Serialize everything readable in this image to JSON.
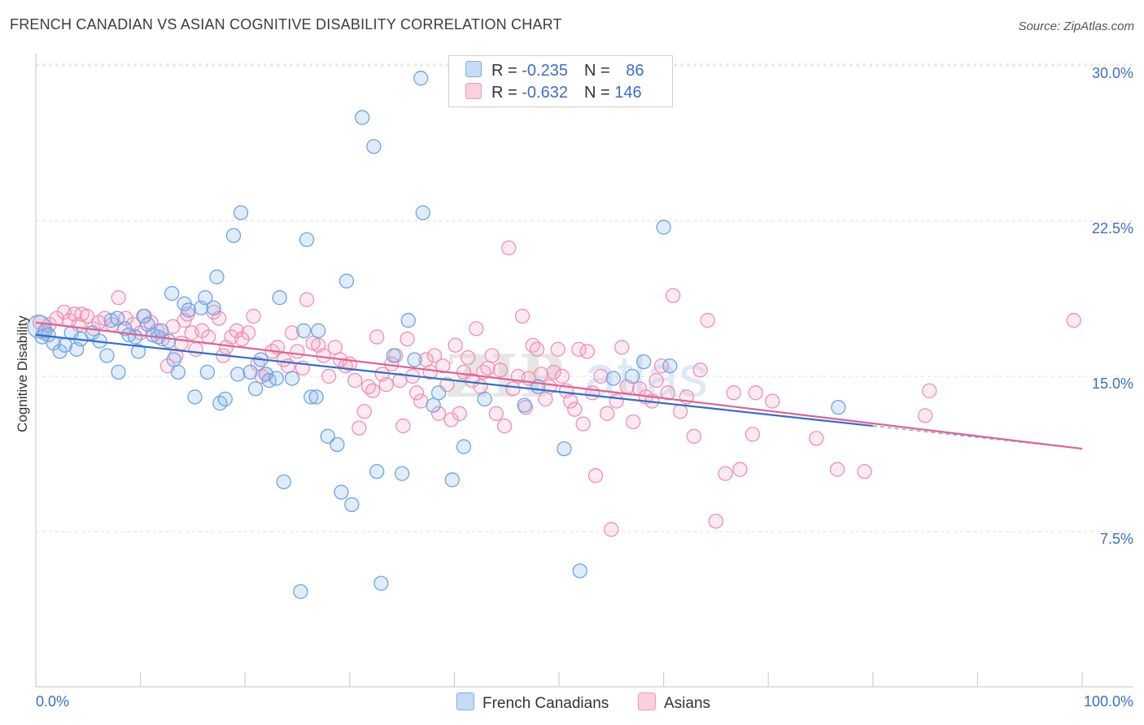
{
  "header": {
    "title": "FRENCH CANADIAN VS ASIAN COGNITIVE DISABILITY CORRELATION CHART",
    "source": "Source: ZipAtlas.com"
  },
  "legend": {
    "rows": [
      {
        "r_label": "R = ",
        "r_value": "-0.235",
        "n_label": "N = ",
        "n_value": "86",
        "color": "#7aaeea"
      },
      {
        "r_label": "R = ",
        "r_value": "-0.632",
        "n_label": "N = ",
        "n_value": "146",
        "color": "#f09ab6"
      }
    ]
  },
  "bottom_legend": {
    "items": [
      {
        "label": "French Canadians",
        "color": "#7aaeea"
      },
      {
        "label": "Asians",
        "color": "#f09ab6"
      }
    ]
  },
  "colors": {
    "blue": "#6fa3e6",
    "blue_line": "#2d6fce",
    "pink": "#f08fb0",
    "pink_line": "#e0628f",
    "grid": "#dcdcdc",
    "tick_text": "#3b6fc4"
  },
  "chart_data": {
    "type": "scatter",
    "title": "FRENCH CANADIAN VS ASIAN COGNITIVE DISABILITY CORRELATION CHART",
    "xlabel": "",
    "ylabel": "Cognitive Disability",
    "xlim": [
      0,
      100
    ],
    "ylim": [
      0,
      31
    ],
    "x_tick_labels": [
      "0.0%",
      "100.0%"
    ],
    "y_ticks": [
      7.5,
      15.0,
      22.5,
      30.0
    ],
    "y_tick_labels": [
      "7.5%",
      "15.0%",
      "22.5%",
      "30.0%"
    ],
    "grid": true,
    "legend_position": "top-center",
    "series": [
      {
        "name": "French Canadians",
        "r": -0.235,
        "n": 86,
        "trend": {
          "x": [
            0,
            80
          ],
          "y": [
            17.0,
            12.6
          ]
        },
        "trend_dashed_to": 100,
        "points": [
          [
            0.3,
            17.4
          ],
          [
            0.6,
            16.9
          ],
          [
            0.9,
            17.2
          ],
          [
            1.2,
            17.0
          ],
          [
            1.7,
            16.6
          ],
          [
            2.3,
            16.2
          ],
          [
            2.8,
            16.5
          ],
          [
            3.4,
            17.1
          ],
          [
            3.9,
            16.3
          ],
          [
            4.3,
            16.8
          ],
          [
            5.4,
            17.1
          ],
          [
            6.1,
            16.7
          ],
          [
            6.8,
            16.0
          ],
          [
            7.2,
            17.7
          ],
          [
            7.8,
            17.8
          ],
          [
            7.9,
            15.2
          ],
          [
            8.5,
            17.3
          ],
          [
            8.9,
            17.0
          ],
          [
            9.5,
            16.9
          ],
          [
            9.8,
            16.2
          ],
          [
            10.3,
            17.9
          ],
          [
            10.7,
            17.5
          ],
          [
            11.2,
            17.0
          ],
          [
            11.7,
            16.9
          ],
          [
            12.0,
            17.2
          ],
          [
            12.7,
            16.7
          ],
          [
            13.0,
            19.0
          ],
          [
            13.2,
            15.8
          ],
          [
            13.6,
            15.2
          ],
          [
            14.2,
            18.5
          ],
          [
            14.6,
            18.2
          ],
          [
            15.2,
            14.0
          ],
          [
            15.8,
            18.3
          ],
          [
            16.2,
            18.8
          ],
          [
            16.4,
            15.2
          ],
          [
            17.0,
            18.3
          ],
          [
            17.3,
            19.8
          ],
          [
            17.6,
            13.7
          ],
          [
            18.1,
            13.9
          ],
          [
            18.9,
            21.8
          ],
          [
            19.3,
            15.1
          ],
          [
            19.6,
            22.9
          ],
          [
            20.5,
            15.2
          ],
          [
            21.0,
            14.4
          ],
          [
            21.5,
            15.8
          ],
          [
            22.0,
            15.1
          ],
          [
            22.3,
            14.8
          ],
          [
            23.0,
            14.9
          ],
          [
            23.3,
            18.8
          ],
          [
            23.7,
            9.9
          ],
          [
            24.5,
            14.9
          ],
          [
            25.3,
            4.6
          ],
          [
            25.6,
            17.2
          ],
          [
            25.9,
            21.6
          ],
          [
            26.3,
            14.0
          ],
          [
            26.8,
            14.0
          ],
          [
            27.0,
            17.2
          ],
          [
            27.9,
            12.1
          ],
          [
            28.8,
            11.7
          ],
          [
            29.2,
            9.4
          ],
          [
            29.7,
            19.6
          ],
          [
            30.2,
            8.8
          ],
          [
            31.2,
            27.5
          ],
          [
            32.3,
            26.1
          ],
          [
            32.6,
            10.4
          ],
          [
            33.0,
            5.0
          ],
          [
            34.2,
            16.0
          ],
          [
            35.0,
            10.3
          ],
          [
            35.6,
            17.7
          ],
          [
            36.2,
            15.8
          ],
          [
            36.8,
            29.4
          ],
          [
            37.0,
            22.9
          ],
          [
            38.0,
            13.6
          ],
          [
            38.5,
            14.2
          ],
          [
            39.8,
            10.0
          ],
          [
            40.9,
            11.6
          ],
          [
            42.9,
            13.9
          ],
          [
            46.7,
            13.6
          ],
          [
            48.0,
            14.5
          ],
          [
            50.5,
            11.5
          ],
          [
            52.0,
            5.6
          ],
          [
            55.2,
            14.9
          ],
          [
            57.0,
            15.0
          ],
          [
            58.1,
            15.7
          ],
          [
            60.0,
            22.2
          ],
          [
            60.6,
            15.5
          ],
          [
            76.7,
            13.5
          ]
        ]
      },
      {
        "name": "Asians",
        "r": -0.632,
        "n": 146,
        "trend": {
          "x": [
            0,
            100
          ],
          "y": [
            17.6,
            11.5
          ]
        },
        "points": [
          [
            0.4,
            17.6
          ],
          [
            0.8,
            17.1
          ],
          [
            1.3,
            17.5
          ],
          [
            2.0,
            17.8
          ],
          [
            2.7,
            18.1
          ],
          [
            3.2,
            17.7
          ],
          [
            3.7,
            18.0
          ],
          [
            4.1,
            17.5
          ],
          [
            4.4,
            18.0
          ],
          [
            4.9,
            17.9
          ],
          [
            5.5,
            17.3
          ],
          [
            6.0,
            17.6
          ],
          [
            6.6,
            17.8
          ],
          [
            7.3,
            17.5
          ],
          [
            7.9,
            18.8
          ],
          [
            8.6,
            17.8
          ],
          [
            9.3,
            17.5
          ],
          [
            10.0,
            17.1
          ],
          [
            10.4,
            17.9
          ],
          [
            11.0,
            17.6
          ],
          [
            11.6,
            17.2
          ],
          [
            12.1,
            16.8
          ],
          [
            12.6,
            15.5
          ],
          [
            13.1,
            17.4
          ],
          [
            13.4,
            16.0
          ],
          [
            13.9,
            16.6
          ],
          [
            14.2,
            17.7
          ],
          [
            14.5,
            18.0
          ],
          [
            14.9,
            17.1
          ],
          [
            15.3,
            16.3
          ],
          [
            15.9,
            17.2
          ],
          [
            16.5,
            16.9
          ],
          [
            17.0,
            18.1
          ],
          [
            17.5,
            17.8
          ],
          [
            17.9,
            16.0
          ],
          [
            18.2,
            16.4
          ],
          [
            18.7,
            16.9
          ],
          [
            19.2,
            17.2
          ],
          [
            19.7,
            16.8
          ],
          [
            20.3,
            17.1
          ],
          [
            20.8,
            17.9
          ],
          [
            21.2,
            15.6
          ],
          [
            21.6,
            15.0
          ],
          [
            22.0,
            15.1
          ],
          [
            22.6,
            16.2
          ],
          [
            23.1,
            16.4
          ],
          [
            23.7,
            15.8
          ],
          [
            24.1,
            15.5
          ],
          [
            24.5,
            17.1
          ],
          [
            25.0,
            16.2
          ],
          [
            25.5,
            15.4
          ],
          [
            25.9,
            18.7
          ],
          [
            26.5,
            16.6
          ],
          [
            27.0,
            16.5
          ],
          [
            27.5,
            16.0
          ],
          [
            28.0,
            15.0
          ],
          [
            28.6,
            16.4
          ],
          [
            29.1,
            15.8
          ],
          [
            29.6,
            15.5
          ],
          [
            30.0,
            15.6
          ],
          [
            30.5,
            14.8
          ],
          [
            30.9,
            12.5
          ],
          [
            31.4,
            13.3
          ],
          [
            31.8,
            14.5
          ],
          [
            32.2,
            14.3
          ],
          [
            32.6,
            16.9
          ],
          [
            33.1,
            15.1
          ],
          [
            33.5,
            14.6
          ],
          [
            34.0,
            15.6
          ],
          [
            34.4,
            16.0
          ],
          [
            34.8,
            14.8
          ],
          [
            35.1,
            12.6
          ],
          [
            35.5,
            16.8
          ],
          [
            36.0,
            15.0
          ],
          [
            36.4,
            14.2
          ],
          [
            36.8,
            13.8
          ],
          [
            37.3,
            15.8
          ],
          [
            37.7,
            15.2
          ],
          [
            38.1,
            16.0
          ],
          [
            38.5,
            13.2
          ],
          [
            38.9,
            15.5
          ],
          [
            39.3,
            14.6
          ],
          [
            39.7,
            12.9
          ],
          [
            40.1,
            16.5
          ],
          [
            40.5,
            13.2
          ],
          [
            40.9,
            15.2
          ],
          [
            41.3,
            15.9
          ],
          [
            41.7,
            14.8
          ],
          [
            42.1,
            17.3
          ],
          [
            42.5,
            14.5
          ],
          [
            42.8,
            15.2
          ],
          [
            43.2,
            15.4
          ],
          [
            43.6,
            16.0
          ],
          [
            44.0,
            13.2
          ],
          [
            44.4,
            15.3
          ],
          [
            44.8,
            12.6
          ],
          [
            45.2,
            21.2
          ],
          [
            45.6,
            14.4
          ],
          [
            46.1,
            15.0
          ],
          [
            46.5,
            17.9
          ],
          [
            46.8,
            13.5
          ],
          [
            47.1,
            14.9
          ],
          [
            47.5,
            16.5
          ],
          [
            47.9,
            16.3
          ],
          [
            48.3,
            15.1
          ],
          [
            48.7,
            13.9
          ],
          [
            49.1,
            14.5
          ],
          [
            49.5,
            15.2
          ],
          [
            49.9,
            16.3
          ],
          [
            50.3,
            15.0
          ],
          [
            50.7,
            14.3
          ],
          [
            51.1,
            13.8
          ],
          [
            51.5,
            13.4
          ],
          [
            51.9,
            16.3
          ],
          [
            52.3,
            12.7
          ],
          [
            52.7,
            16.2
          ],
          [
            53.2,
            14.2
          ],
          [
            53.5,
            10.2
          ],
          [
            54.0,
            15.0
          ],
          [
            54.6,
            13.2
          ],
          [
            55.0,
            7.6
          ],
          [
            55.5,
            13.8
          ],
          [
            56.0,
            16.4
          ],
          [
            56.5,
            14.5
          ],
          [
            57.1,
            12.8
          ],
          [
            57.7,
            14.4
          ],
          [
            58.3,
            14.0
          ],
          [
            58.9,
            13.8
          ],
          [
            59.3,
            14.8
          ],
          [
            59.8,
            15.5
          ],
          [
            60.4,
            14.2
          ],
          [
            60.9,
            18.9
          ],
          [
            61.6,
            13.3
          ],
          [
            62.2,
            14.0
          ],
          [
            62.9,
            12.1
          ],
          [
            63.5,
            15.3
          ],
          [
            64.2,
            17.7
          ],
          [
            65.0,
            8.0
          ],
          [
            65.9,
            10.3
          ],
          [
            66.7,
            14.2
          ],
          [
            67.3,
            10.5
          ],
          [
            68.5,
            12.2
          ],
          [
            68.8,
            14.2
          ],
          [
            70.4,
            13.8
          ],
          [
            74.6,
            12.0
          ],
          [
            76.6,
            10.5
          ],
          [
            79.2,
            10.4
          ],
          [
            85.0,
            13.1
          ],
          [
            85.4,
            14.3
          ],
          [
            99.2,
            17.7
          ]
        ]
      }
    ]
  }
}
